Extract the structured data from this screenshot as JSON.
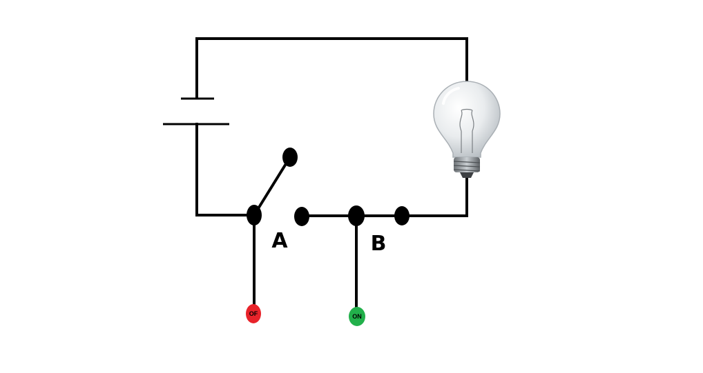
{
  "diagram": {
    "labels": {
      "switch_a": "A",
      "switch_b": "B"
    },
    "indicators": {
      "off": {
        "text": "OF",
        "color": "#e8232a"
      },
      "on": {
        "text": "ON",
        "color": "#22b04b"
      }
    },
    "colors": {
      "wire": "#000000",
      "bulb_glass": "#dfe3e6",
      "bulb_base": "#8a8f93"
    }
  }
}
